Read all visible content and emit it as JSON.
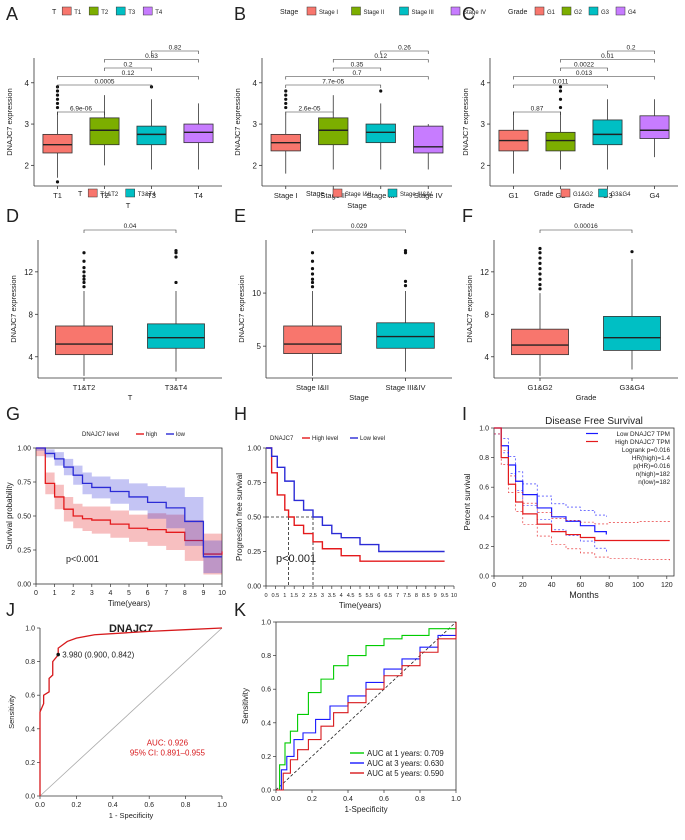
{
  "colors": {
    "red": "#f8766d",
    "green": "#7cae00",
    "teal": "#00bfc4",
    "purple": "#c77cff",
    "km_red": "#e41a1c",
    "km_blue": "#2b2bd6",
    "roc_red": "#d7191c",
    "grey": "#555555"
  },
  "chart_data": [
    {
      "type": "box",
      "panel": "A",
      "legend_title": "T",
      "categories": [
        "T1",
        "T2",
        "T3",
        "T4"
      ],
      "legend": [
        "T1",
        "T2",
        "T3",
        "T4"
      ],
      "ylabel": "DNAJC7 expression",
      "xlabel": "T",
      "ylim": [
        1.5,
        4.6
      ],
      "yticks": [
        "2",
        "3",
        "4"
      ],
      "boxes": [
        {
          "min": 1.7,
          "q1": 2.3,
          "median": 2.5,
          "q3": 2.75,
          "max": 3.3,
          "outliers": [
            3.4,
            3.5,
            3.6,
            3.7,
            3.8,
            3.9,
            1.6
          ]
        },
        {
          "min": 2.0,
          "q1": 2.5,
          "median": 2.85,
          "q3": 3.15,
          "max": 3.7,
          "outliers": []
        },
        {
          "min": 1.9,
          "q1": 2.5,
          "median": 2.75,
          "q3": 2.95,
          "max": 3.6,
          "outliers": [
            3.9
          ]
        },
        {
          "min": 1.9,
          "q1": 2.55,
          "median": 2.8,
          "q3": 3.0,
          "max": 3.5,
          "outliers": []
        }
      ],
      "comparisons": [
        {
          "pair": [
            0,
            1
          ],
          "label": "6.9e-06"
        },
        {
          "pair": [
            0,
            2
          ],
          "label": "0.0005"
        },
        {
          "pair": [
            0,
            3
          ],
          "label": "0.12"
        },
        {
          "pair": [
            1,
            2
          ],
          "label": "0.2"
        },
        {
          "pair": [
            1,
            3
          ],
          "label": "0.63"
        },
        {
          "pair": [
            2,
            3
          ],
          "label": "0.82"
        }
      ]
    },
    {
      "type": "box",
      "panel": "B",
      "legend_title": "Stage",
      "categories": [
        "Stage I",
        "Stage II",
        "Stage III",
        "Stage IV"
      ],
      "legend": [
        "Stage I",
        "Stage II",
        "Stage III",
        "Stage IV"
      ],
      "ylabel": "DNAJC7 expression",
      "xlabel": "Stage",
      "ylim": [
        1.5,
        4.6
      ],
      "yticks": [
        "2",
        "3",
        "4"
      ],
      "boxes": [
        {
          "min": 1.8,
          "q1": 2.35,
          "median": 2.55,
          "q3": 2.75,
          "max": 3.3,
          "outliers": [
            3.4,
            3.5,
            3.6,
            3.7,
            3.8
          ]
        },
        {
          "min": 1.9,
          "q1": 2.5,
          "median": 2.85,
          "q3": 3.15,
          "max": 3.7,
          "outliers": []
        },
        {
          "min": 1.9,
          "q1": 2.55,
          "median": 2.8,
          "q3": 3.0,
          "max": 3.5,
          "outliers": [
            3.8
          ]
        },
        {
          "min": 1.9,
          "q1": 2.3,
          "median": 2.45,
          "q3": 2.95,
          "max": 3.0,
          "outliers": []
        }
      ],
      "comparisons": [
        {
          "pair": [
            0,
            1
          ],
          "label": "2.6e-05"
        },
        {
          "pair": [
            0,
            2
          ],
          "label": "7.7e-05"
        },
        {
          "pair": [
            0,
            3
          ],
          "label": "0.7"
        },
        {
          "pair": [
            1,
            2
          ],
          "label": "0.35"
        },
        {
          "pair": [
            1,
            3
          ],
          "label": "0.12"
        },
        {
          "pair": [
            2,
            3
          ],
          "label": "0.26"
        }
      ]
    },
    {
      "type": "box",
      "panel": "C",
      "legend_title": "Grade",
      "categories": [
        "G1",
        "G2",
        "G3",
        "G4"
      ],
      "legend": [
        "G1",
        "G2",
        "G3",
        "G4"
      ],
      "ylabel": "DNAJC7 expression",
      "xlabel": "Grade",
      "ylim": [
        1.5,
        4.6
      ],
      "yticks": [
        "2",
        "3",
        "4"
      ],
      "boxes": [
        {
          "min": 1.8,
          "q1": 2.35,
          "median": 2.6,
          "q3": 2.85,
          "max": 3.3,
          "outliers": []
        },
        {
          "min": 1.9,
          "q1": 2.35,
          "median": 2.6,
          "q3": 2.8,
          "max": 3.3,
          "outliers": [
            3.4,
            3.6,
            3.8,
            3.9
          ]
        },
        {
          "min": 1.9,
          "q1": 2.5,
          "median": 2.75,
          "q3": 3.1,
          "max": 3.6,
          "outliers": []
        },
        {
          "min": 2.2,
          "q1": 2.65,
          "median": 2.85,
          "q3": 3.2,
          "max": 3.6,
          "outliers": []
        }
      ],
      "comparisons": [
        {
          "pair": [
            0,
            1
          ],
          "label": "0.87"
        },
        {
          "pair": [
            0,
            2
          ],
          "label": "0.011"
        },
        {
          "pair": [
            0,
            3
          ],
          "label": "0.013"
        },
        {
          "pair": [
            1,
            2
          ],
          "label": "0.0022"
        },
        {
          "pair": [
            1,
            3
          ],
          "label": "0.01"
        },
        {
          "pair": [
            2,
            3
          ],
          "label": "0.2"
        }
      ]
    },
    {
      "type": "box",
      "panel": "D",
      "legend_title": "T",
      "categories": [
        "T1&T2",
        "T3&T4"
      ],
      "legend": [
        "T1&T2",
        "T3&T4"
      ],
      "ylabel": "DNAJC7  expression",
      "xlabel": "T",
      "ylim": [
        2,
        15
      ],
      "yticks": [
        "4",
        "8",
        "12"
      ],
      "boxes": [
        {
          "min": 2.2,
          "q1": 4.2,
          "median": 5.2,
          "q3": 6.9,
          "max": 10.2,
          "outliers": [
            10.6,
            11,
            11.3,
            11.6,
            12,
            12.4,
            13,
            13.8
          ]
        },
        {
          "min": 2.6,
          "q1": 4.8,
          "median": 5.8,
          "q3": 7.1,
          "max": 10.2,
          "outliers": [
            11,
            13.4,
            13.8,
            14
          ]
        }
      ],
      "comparisons": [
        {
          "pair": [
            0,
            1
          ],
          "label": "0.04"
        }
      ]
    },
    {
      "type": "box",
      "panel": "E",
      "legend_title": "Stage",
      "categories": [
        "Stage I&II",
        "Stage III&IV"
      ],
      "legend": [
        "Stage I&II",
        "Stage III&IV"
      ],
      "ylabel": "DNAJC7  expression",
      "xlabel": "Stage",
      "ylim": [
        2,
        15
      ],
      "yticks": [
        "5",
        "10"
      ],
      "boxes": [
        {
          "min": 2.2,
          "q1": 4.3,
          "median": 5.2,
          "q3": 6.9,
          "max": 10.2,
          "outliers": [
            10.6,
            11,
            11.3,
            11.8,
            12.3,
            13,
            13.8
          ]
        },
        {
          "min": 2.6,
          "q1": 4.8,
          "median": 5.9,
          "q3": 7.2,
          "max": 10.2,
          "outliers": [
            10.7,
            11.1,
            13.8,
            14
          ]
        }
      ],
      "comparisons": [
        {
          "pair": [
            0,
            1
          ],
          "label": "0.029"
        }
      ]
    },
    {
      "type": "box",
      "panel": "F",
      "legend_title": "Grade",
      "categories": [
        "G1&G2",
        "G3&G4"
      ],
      "legend": [
        "G1&G2",
        "G3&G4"
      ],
      "ylabel": "DNAJC7  expression",
      "xlabel": "Grade",
      "ylim": [
        2,
        15
      ],
      "yticks": [
        "4",
        "8",
        "12"
      ],
      "boxes": [
        {
          "min": 2.2,
          "q1": 4.2,
          "median": 5.1,
          "q3": 6.6,
          "max": 10.0,
          "outliers": [
            10.4,
            10.8,
            11.3,
            11.8,
            12.3,
            12.8,
            13.3,
            13.8,
            14.2
          ]
        },
        {
          "min": 2.8,
          "q1": 4.6,
          "median": 5.8,
          "q3": 7.8,
          "max": 13.2,
          "outliers": [
            13.9
          ]
        }
      ],
      "comparisons": [
        {
          "pair": [
            0,
            1
          ],
          "label": "0.00016"
        }
      ]
    },
    {
      "type": "line",
      "panel": "G",
      "subtype": "kaplan-meier",
      "ylabel": "Survival probability",
      "xlabel": "Time(years)",
      "xlim": [
        0,
        10
      ],
      "ylim": [
        0,
        1
      ],
      "xticks": [
        "0",
        "1",
        "2",
        "3",
        "4",
        "5",
        "6",
        "7",
        "8",
        "9",
        "10"
      ],
      "yticks": [
        "0.00",
        "0.25",
        "0.50",
        "0.75",
        "1.00"
      ],
      "legend_title": "DNAJC7 level",
      "pvalue": "p<0.001",
      "series": [
        {
          "name": "high",
          "x": [
            0,
            0.5,
            1,
            1.5,
            2,
            2.5,
            3,
            4,
            5,
            6,
            7,
            8,
            9,
            10
          ],
          "y": [
            1.0,
            0.74,
            0.64,
            0.55,
            0.5,
            0.48,
            0.47,
            0.44,
            0.41,
            0.4,
            0.38,
            0.32,
            0.22,
            0.24
          ],
          "band": [
            0.06,
            0.08,
            0.09,
            0.09,
            0.09,
            0.09,
            0.1,
            0.1,
            0.1,
            0.12,
            0.13,
            0.15,
            0.15,
            0.15
          ]
        },
        {
          "name": "low",
          "x": [
            0,
            0.5,
            1,
            1.5,
            2,
            2.5,
            3,
            4,
            5,
            6,
            7,
            8,
            9,
            10
          ],
          "y": [
            1.0,
            0.96,
            0.92,
            0.86,
            0.8,
            0.74,
            0.71,
            0.68,
            0.64,
            0.6,
            0.56,
            0.46,
            0.2,
            0.2
          ],
          "band": [
            0.02,
            0.03,
            0.05,
            0.06,
            0.07,
            0.08,
            0.08,
            0.09,
            0.1,
            0.12,
            0.15,
            0.18,
            0.12,
            0.12
          ]
        }
      ]
    },
    {
      "type": "line",
      "panel": "H",
      "subtype": "kaplan-meier",
      "ylabel": "Progression free survival",
      "xlabel": "Time(years)",
      "xlim": [
        0,
        10
      ],
      "ylim": [
        0,
        1
      ],
      "xticks": [
        "0",
        "0.5",
        "1",
        "1.5",
        "2",
        "2.5",
        "3",
        "3.5",
        "4",
        "4.5",
        "5",
        "5.5",
        "6",
        "6.5",
        "7",
        "7.5",
        "8",
        "8.5",
        "9",
        "9.5",
        "10"
      ],
      "yticks": [
        "0.00",
        "0.25",
        "0.50",
        "0.75",
        "1.00"
      ],
      "legend_title": "DNAJC7",
      "pvalue": "p<0.001",
      "median_lines": [
        1.2,
        2.5
      ],
      "series": [
        {
          "name": "High level",
          "x": [
            0,
            0.3,
            0.6,
            1,
            1.2,
            1.5,
            2,
            2.5,
            3,
            4,
            5,
            6,
            7,
            8,
            9,
            9.5
          ],
          "y": [
            1.0,
            0.82,
            0.66,
            0.55,
            0.5,
            0.44,
            0.38,
            0.32,
            0.27,
            0.22,
            0.18,
            0.18,
            0.18,
            0.18,
            0.18,
            0.18
          ]
        },
        {
          "name": "Low level",
          "x": [
            0,
            0.3,
            0.6,
            1,
            1.5,
            2,
            2.5,
            3,
            3.5,
            4,
            5,
            6,
            7,
            8,
            9,
            9.5
          ],
          "y": [
            1.0,
            0.94,
            0.86,
            0.76,
            0.62,
            0.55,
            0.5,
            0.44,
            0.38,
            0.35,
            0.3,
            0.25,
            0.25,
            0.25,
            0.25,
            0.25
          ]
        }
      ]
    },
    {
      "type": "line",
      "panel": "I",
      "subtype": "kaplan-meier",
      "title": "Disease Free Survival",
      "ylabel": "Percent survival",
      "xlabel": "Months",
      "xlim": [
        0,
        125
      ],
      "ylim": [
        0,
        1
      ],
      "xticks": [
        "0",
        "20",
        "40",
        "60",
        "80",
        "100",
        "120"
      ],
      "yticks": [
        "0.0",
        "0.2",
        "0.4",
        "0.6",
        "0.8",
        "1.0"
      ],
      "legend": [
        "Low DNAJC7 TPM",
        "High DNAJC7 TPM",
        "Logrank p=0.016",
        "HR(high)=1.4",
        "p(HR)=0.016",
        "n(high)=182",
        "n(low)=182"
      ],
      "series": [
        {
          "name": "Low DNAJC7 TPM",
          "x": [
            0,
            5,
            10,
            15,
            20,
            30,
            40,
            50,
            60,
            70,
            78
          ],
          "y": [
            1.0,
            0.88,
            0.75,
            0.64,
            0.55,
            0.46,
            0.4,
            0.37,
            0.34,
            0.3,
            0.28
          ]
        },
        {
          "name": "High DNAJC7 TPM",
          "x": [
            0,
            5,
            10,
            15,
            20,
            30,
            40,
            50,
            60,
            70,
            80,
            100,
            122
          ],
          "y": [
            1.0,
            0.8,
            0.62,
            0.5,
            0.42,
            0.35,
            0.3,
            0.28,
            0.26,
            0.24,
            0.24,
            0.24,
            0.24
          ]
        }
      ]
    },
    {
      "type": "line",
      "panel": "J",
      "subtype": "roc",
      "title": "DNAJC7",
      "ylabel": "Sensitivity",
      "xlabel": "1 - Specificity",
      "xlim": [
        0,
        1
      ],
      "ylim": [
        0,
        1
      ],
      "xticks": [
        "0.0",
        "0.2",
        "0.4",
        "0.6",
        "0.8",
        "1.0"
      ],
      "yticks": [
        "0.0",
        "0.2",
        "0.4",
        "0.6",
        "0.8",
        "1.0"
      ],
      "cutoff_label": "3.980 (0.900, 0.842)",
      "cutoff_point": [
        0.1,
        0.842
      ],
      "auc": "AUC: 0.926",
      "ci": "95% CI: 0.891–0.955",
      "series": [
        {
          "name": "DNAJC7",
          "x": [
            0,
            0,
            0.02,
            0.02,
            0.05,
            0.05,
            0.07,
            0.07,
            0.1,
            0.1,
            0.15,
            0.2,
            0.3,
            0.45,
            0.6,
            0.8,
            1.0
          ],
          "y": [
            0,
            0.5,
            0.55,
            0.6,
            0.62,
            0.7,
            0.72,
            0.8,
            0.84,
            0.88,
            0.92,
            0.94,
            0.96,
            0.97,
            0.98,
            0.99,
            1.0
          ]
        }
      ]
    },
    {
      "type": "line",
      "panel": "K",
      "subtype": "roc",
      "ylabel": "Sensitivity",
      "xlabel": "1-Specificity",
      "xlim": [
        0,
        1
      ],
      "ylim": [
        0,
        1
      ],
      "xticks": [
        "0.0",
        "0.2",
        "0.4",
        "0.6",
        "0.8",
        "1.0"
      ],
      "yticks": [
        "0.0",
        "0.2",
        "0.4",
        "0.6",
        "0.8",
        "1.0"
      ],
      "series": [
        {
          "name": "AUC at 1 years: 0.709",
          "color": "#00cc00",
          "x": [
            0,
            0.02,
            0.05,
            0.08,
            0.12,
            0.18,
            0.25,
            0.32,
            0.4,
            0.5,
            0.6,
            0.7,
            0.85,
            1.0
          ],
          "y": [
            0,
            0.15,
            0.28,
            0.35,
            0.45,
            0.58,
            0.66,
            0.74,
            0.8,
            0.86,
            0.9,
            0.92,
            0.96,
            1.0
          ]
        },
        {
          "name": "AUC at 3 years: 0.630",
          "color": "#1a1aff",
          "x": [
            0,
            0.03,
            0.06,
            0.1,
            0.15,
            0.22,
            0.3,
            0.4,
            0.5,
            0.6,
            0.7,
            0.8,
            0.9,
            1.0
          ],
          "y": [
            0,
            0.12,
            0.2,
            0.3,
            0.34,
            0.42,
            0.5,
            0.56,
            0.64,
            0.72,
            0.78,
            0.85,
            0.92,
            1.0
          ]
        },
        {
          "name": "AUC at 5 years: 0.590",
          "color": "#d7191c",
          "x": [
            0,
            0.04,
            0.08,
            0.12,
            0.18,
            0.25,
            0.32,
            0.4,
            0.5,
            0.6,
            0.7,
            0.8,
            0.9,
            1.0
          ],
          "y": [
            0,
            0.1,
            0.18,
            0.24,
            0.3,
            0.38,
            0.46,
            0.52,
            0.6,
            0.68,
            0.74,
            0.82,
            0.9,
            1.0
          ]
        }
      ]
    }
  ]
}
